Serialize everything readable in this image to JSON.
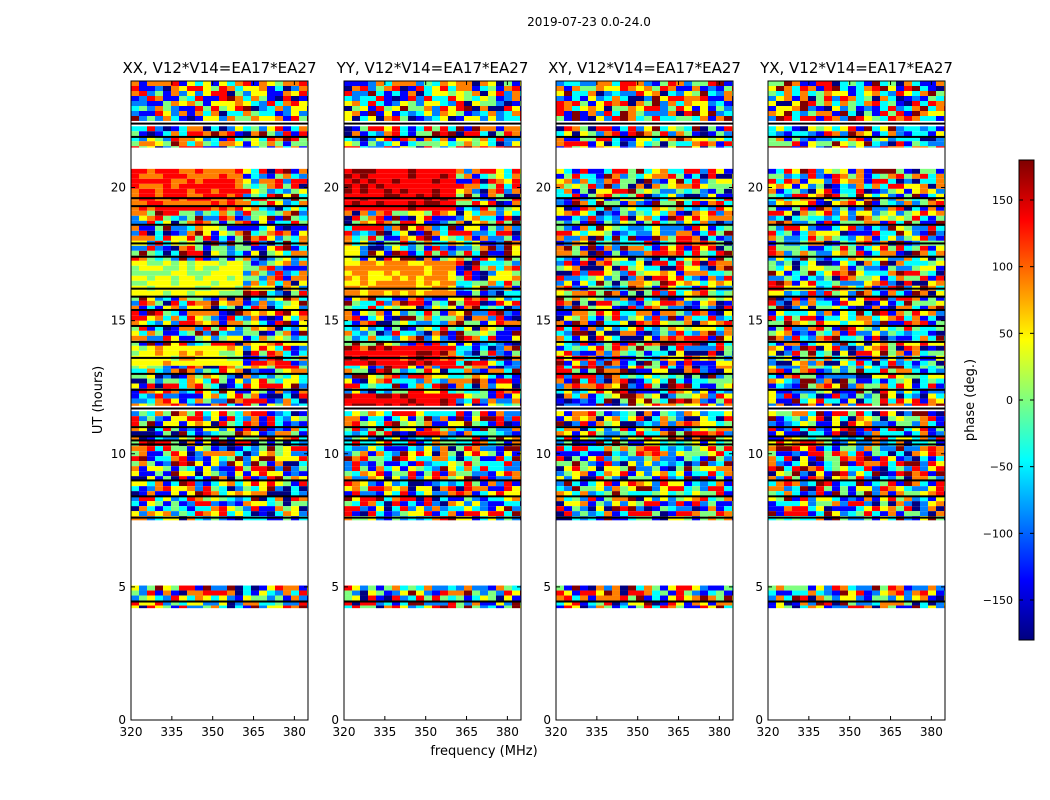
{
  "figure_title": "2019-07-23 0.0-24.0",
  "chart_data": {
    "type": "heatmap",
    "title": "2019-07-23 0.0-24.0",
    "xlabel": "frequency (MHz)",
    "ylabel": "UT (hours)",
    "xlim": [
      320,
      385
    ],
    "ylim": [
      0,
      24
    ],
    "xticks": [
      320,
      335,
      350,
      365,
      380
    ],
    "yticks": [
      0,
      5,
      10,
      15,
      20
    ],
    "colorbar": {
      "label": "phase (deg.)",
      "range": [
        -180,
        180
      ],
      "ticks": [
        -150,
        -100,
        -50,
        0,
        50,
        100,
        150
      ],
      "tick_labels": [
        "−150",
        "−100",
        "−50",
        "0",
        "50",
        "100",
        "150"
      ],
      "colormap": "jet",
      "colors": [
        "#00007f",
        "#0000ff",
        "#007fff",
        "#00ffff",
        "#7fff7f",
        "#ffff00",
        "#ff7f00",
        "#ff0000",
        "#7f0000"
      ]
    },
    "panels": [
      {
        "title": "XX, V12*V14=EA17*EA27",
        "bias": [
          {
            "t0": 19.2,
            "t1": 20.7,
            "value": 120
          },
          {
            "t0": 16.0,
            "t1": 17.2,
            "value": 30
          },
          {
            "t0": 13.3,
            "t1": 14.0,
            "value": 45
          }
        ]
      },
      {
        "title": "YY, V12*V14=EA17*EA27",
        "bias": [
          {
            "t0": 19.2,
            "t1": 20.7,
            "value": 150
          },
          {
            "t0": 16.0,
            "t1": 17.2,
            "value": 80
          },
          {
            "t0": 13.3,
            "t1": 14.0,
            "value": 140
          },
          {
            "t0": 11.8,
            "t1": 12.3,
            "value": 150
          }
        ]
      },
      {
        "title": "XY, V12*V14=EA17*EA27",
        "bias": []
      },
      {
        "title": "YX, V12*V14=EA17*EA27",
        "bias": []
      }
    ],
    "data_intervals_hours": [
      [
        4.2,
        5.05
      ],
      [
        7.5,
        11.6
      ],
      [
        11.8,
        13.2
      ],
      [
        13.2,
        19.5
      ],
      [
        19.5,
        20.7
      ],
      [
        21.5,
        22.3
      ],
      [
        22.5,
        24.0
      ]
    ],
    "flagged_lines_hours": [
      4.45,
      7.6,
      8.4,
      9.0,
      10.35,
      10.5,
      10.65,
      11.0,
      11.7,
      12.4,
      13.0,
      13.6,
      14.2,
      14.8,
      15.4,
      15.9,
      16.2,
      17.4,
      17.9,
      18.6,
      19.3,
      19.6,
      21.9,
      22.4
    ]
  }
}
